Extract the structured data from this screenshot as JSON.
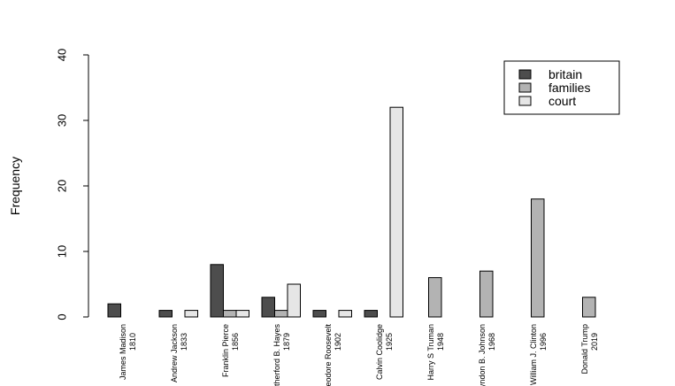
{
  "chart_data": {
    "type": "bar",
    "ylabel": "Frequency",
    "xlabel": "",
    "ylim": [
      0,
      40
    ],
    "yticks": [
      0,
      10,
      20,
      30,
      40
    ],
    "grid": false,
    "legend_position": "top-right",
    "categories": [
      {
        "name": "James Madison",
        "year": "1810"
      },
      {
        "name": "Andrew Jackson",
        "year": "1833"
      },
      {
        "name": "Franklin Pierce",
        "year": "1856"
      },
      {
        "name": "Rutherford B. Hayes",
        "year": "1879"
      },
      {
        "name": "Theodore Roosevelt",
        "year": "1902"
      },
      {
        "name": "Calvin Coolidge",
        "year": "1925"
      },
      {
        "name": "Harry S Truman",
        "year": "1948"
      },
      {
        "name": "Lyndon B. Johnson",
        "year": "1968"
      },
      {
        "name": "William J. Clinton",
        "year": "1996"
      },
      {
        "name": "Donald Trump",
        "year": "2019"
      }
    ],
    "series": [
      {
        "name": "britain",
        "color": "#4d4d4d",
        "values": [
          2,
          1,
          8,
          3,
          1,
          1,
          0,
          0,
          0,
          0
        ]
      },
      {
        "name": "families",
        "color": "#b3b3b3",
        "values": [
          0,
          0,
          1,
          1,
          0,
          0,
          6,
          7,
          18,
          3
        ]
      },
      {
        "name": "court",
        "color": "#e6e6e6",
        "values": [
          0,
          1,
          1,
          5,
          1,
          32,
          0,
          0,
          0,
          0
        ]
      }
    ]
  }
}
